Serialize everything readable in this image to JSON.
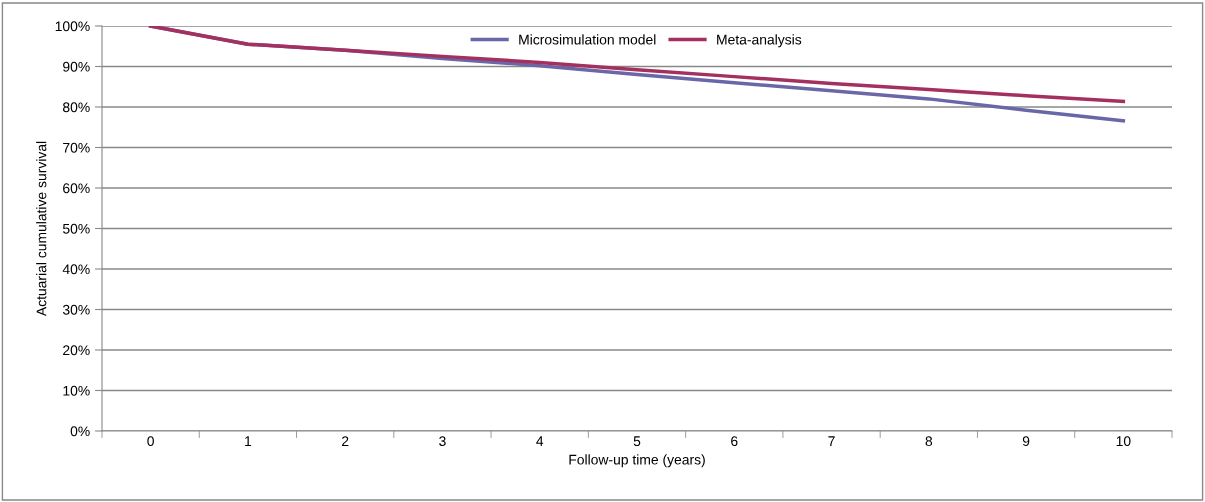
{
  "chart_data": {
    "type": "line",
    "xlabel": "Follow-up time (years)",
    "ylabel": "Actuarial cumulative survival",
    "categories": [
      "0",
      "1",
      "2",
      "3",
      "4",
      "5",
      "6",
      "7",
      "8",
      "9",
      "10"
    ],
    "series": [
      {
        "name": "Microsimulation model",
        "color": "#6a67a8",
        "values": [
          100,
          95.5,
          94,
          92,
          90.2,
          88,
          86,
          84,
          82,
          79.2,
          76.6
        ]
      },
      {
        "name": "Meta-analysis",
        "color": "#a3305f",
        "values": [
          100,
          95.5,
          94,
          92.5,
          91,
          89.2,
          87.5,
          85.8,
          84.3,
          82.8,
          81.4
        ]
      }
    ],
    "ylim": [
      0,
      100
    ],
    "yticks": [
      {
        "value": 0,
        "label": "0%"
      },
      {
        "value": 10,
        "label": "10%"
      },
      {
        "value": 20,
        "label": "20%"
      },
      {
        "value": 30,
        "label": "30%"
      },
      {
        "value": 40,
        "label": "40%"
      },
      {
        "value": 50,
        "label": "50%"
      },
      {
        "value": 60,
        "label": "60%"
      },
      {
        "value": 70,
        "label": "70%"
      },
      {
        "value": 80,
        "label": "80%"
      },
      {
        "value": 90,
        "label": "90%"
      },
      {
        "value": 100,
        "label": "100%"
      }
    ],
    "grid": "y",
    "legend": "top",
    "marker": "none",
    "line_style": "solid"
  }
}
